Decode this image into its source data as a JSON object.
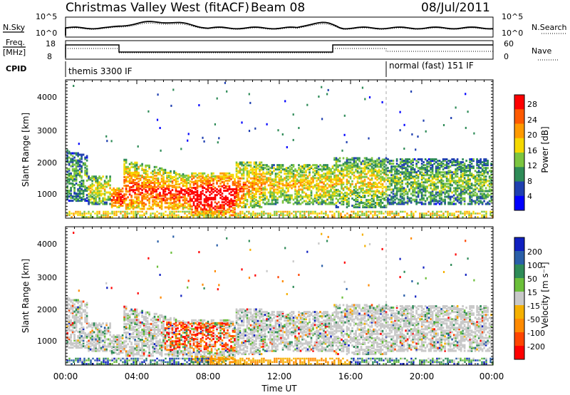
{
  "header": {
    "title": "Christmas Valley West (fitACF)",
    "beam": "Beam 08",
    "date": "08/Jul/2011"
  },
  "ancillary": {
    "nsky_label": "N.Sky",
    "nsearch_label": "N.Search",
    "nsky_ticks": [
      "10^5",
      "10^0"
    ],
    "nsearch_ticks": [
      "10^5",
      "10^0"
    ],
    "freq_label_1": "Freq.",
    "freq_label_2": "[MHz]",
    "freq_ticks": [
      "18",
      "8"
    ],
    "nave_label": "Nave",
    "nave_ticks": [
      "60",
      "0"
    ],
    "cpid_label": "CPID",
    "cpid_left": "themis 3300 IF",
    "cpid_right": "normal (fast) 151 IF"
  },
  "colors": {
    "power": [
      "#0000ff",
      "#1f3fb0",
      "#2e8b57",
      "#7cc540",
      "#f5d800",
      "#ff9a00",
      "#ff5a00",
      "#ff0000"
    ],
    "velocity": [
      "#1020c0",
      "#2a5fa8",
      "#2e8b57",
      "#6bbf3a",
      "#c8c8c8",
      "#f5b000",
      "#ff8a00",
      "#ff4500",
      "#ff0000"
    ]
  },
  "chart_data": [
    {
      "type": "heatmap",
      "name": "power",
      "ylabel": "Slant Range [km]",
      "colorbar_label": "Power [dB]",
      "colorbar_ticks": [
        "28",
        "24",
        "20",
        "16",
        "12",
        "8",
        "4"
      ],
      "x_ticks": [
        "00:00",
        "04:00",
        "08:00",
        "12:00",
        "16:00",
        "20:00",
        "00:00"
      ],
      "y_ticks": [
        "4000",
        "3000",
        "2000",
        "1000"
      ],
      "xlim": [
        0,
        24
      ],
      "ylim": [
        180,
        4500
      ],
      "mode_change_time": 18.0
    },
    {
      "type": "heatmap",
      "name": "velocity",
      "ylabel": "Slant Range [km]",
      "xlabel": "Time UT",
      "colorbar_label": "Velocity [m s⁻¹]",
      "colorbar_ticks": [
        "200",
        "100",
        "50",
        "15",
        "-15",
        "-50",
        "-100",
        "-200"
      ],
      "x_ticks": [
        "00:00",
        "04:00",
        "08:00",
        "12:00",
        "16:00",
        "20:00",
        "00:00"
      ],
      "y_ticks": [
        "4000",
        "3000",
        "2000",
        "1000"
      ],
      "xlim": [
        0,
        24
      ],
      "ylim": [
        180,
        4500
      ],
      "mode_change_time": 18.0
    }
  ]
}
